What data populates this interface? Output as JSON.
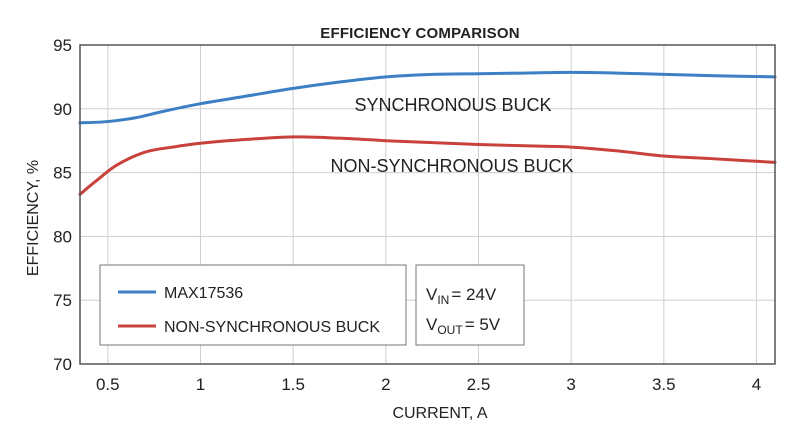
{
  "chart_data": {
    "type": "line",
    "title": "EFFICIENCY COMPARISON",
    "xlabel": "CURRENT, A",
    "ylabel": "EFFICIENCY, %",
    "xlim": [
      0.35,
      4.1
    ],
    "ylim": [
      70,
      95
    ],
    "x_ticks": [
      0.5,
      1,
      1.5,
      2,
      2.5,
      3,
      3.5,
      4
    ],
    "y_ticks": [
      70,
      75,
      80,
      85,
      90,
      95
    ],
    "grid": true,
    "legend_position": "bottom-left",
    "series": [
      {
        "name": "MAX17536",
        "color": "#3c7fc4",
        "x": [
          0.35,
          0.5,
          0.65,
          0.8,
          1.0,
          1.25,
          1.5,
          1.75,
          2.0,
          2.25,
          2.5,
          2.75,
          3.0,
          3.25,
          3.5,
          3.75,
          4.1
        ],
        "y": [
          88.9,
          89.0,
          89.3,
          89.8,
          90.4,
          91.0,
          91.6,
          92.1,
          92.5,
          92.7,
          92.75,
          92.8,
          92.85,
          92.8,
          92.7,
          92.6,
          92.5
        ]
      },
      {
        "name": "NON-SYNCHRONOUS BUCK",
        "color": "#c9413c",
        "x": [
          0.35,
          0.45,
          0.55,
          0.7,
          0.85,
          1.0,
          1.25,
          1.5,
          1.75,
          2.0,
          2.25,
          2.5,
          2.75,
          3.0,
          3.25,
          3.5,
          3.75,
          4.1
        ],
        "y": [
          83.3,
          84.5,
          85.6,
          86.6,
          87.0,
          87.3,
          87.6,
          87.8,
          87.7,
          87.5,
          87.35,
          87.2,
          87.1,
          87.0,
          86.7,
          86.3,
          86.1,
          85.8
        ]
      }
    ],
    "annotations": [
      {
        "text": "SYNCHRONOUS BUCK",
        "x": 2.25,
        "y": 90.4
      },
      {
        "text": "NON-SYNCHRONOUS BUCK",
        "x": 2.15,
        "y": 85.5
      }
    ],
    "conditions": {
      "vin": {
        "main": "V",
        "sub": "IN",
        "value": "= 24V"
      },
      "vout": {
        "main": "V",
        "sub": "OUT",
        "value": "= 5V"
      }
    }
  }
}
